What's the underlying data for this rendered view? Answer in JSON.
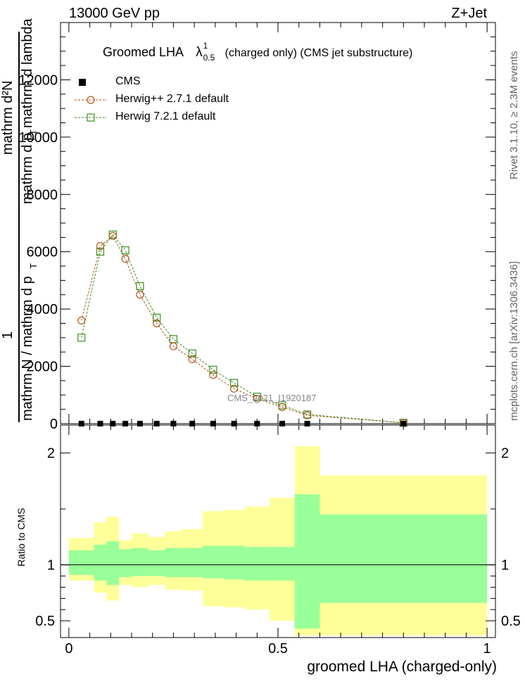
{
  "header": {
    "left": "13000 GeV pp",
    "right": "Z+Jet"
  },
  "side_labels": {
    "rivet": "Rivet 3.1.10, ≥ 2.3M events",
    "mcplots": "mcplots.cern.ch [arXiv:1306.3436]"
  },
  "watermark": "CMS_2021_I1920187",
  "y_title_parts": {
    "numerator": "mathrm d²N",
    "denominator": "mathrm d p",
    "denominator_sub": "T",
    "denominator_tail": " mathrm d lambda",
    "prefix_num": "1",
    "prefix_den": "mathrm N / mathrm d p",
    "prefix_den_sub": "T"
  },
  "colors": {
    "herwig_pp": "#b0561c",
    "herwig7": "#3a8f1c",
    "band_stat": "#99ff99",
    "band_total": "#ffff99"
  },
  "chart_data": [
    {
      "type": "scatter",
      "title": "Groomed LHA  λ¹₀.₅  (charged only) (CMS jet substructure)",
      "title_main": "Groomed LHA",
      "title_lambda": "λ",
      "title_sup": "1",
      "title_sub": "0.5",
      "title_tail": "(charged only) (CMS jet substructure)",
      "xlabel": "groomed LHA (charged-only)",
      "xlim": [
        -0.02,
        1.02
      ],
      "ylim": [
        0,
        14000
      ],
      "y_ticks": [
        0,
        2000,
        4000,
        6000,
        8000,
        10000,
        12000
      ],
      "y_tick_labels": [
        "0",
        "2000",
        "4000",
        "6000",
        "8000",
        "10000",
        "12000"
      ],
      "legend_position": "top-left",
      "series": [
        {
          "name": "CMS",
          "marker": "filled-square",
          "x": [
            0.03,
            0.075,
            0.105,
            0.135,
            0.17,
            0.21,
            0.25,
            0.295,
            0.345,
            0.395,
            0.45,
            0.51,
            0.57,
            0.8
          ],
          "y": [
            0,
            0,
            0,
            0,
            0,
            0,
            0,
            0,
            0,
            0,
            0,
            0,
            0,
            0
          ]
        },
        {
          "name": "Herwig++ 2.7.1 default",
          "marker": "open-circle",
          "x": [
            0.03,
            0.075,
            0.105,
            0.135,
            0.17,
            0.21,
            0.25,
            0.295,
            0.345,
            0.395,
            0.45,
            0.51,
            0.57,
            0.8
          ],
          "y": [
            3600,
            6200,
            6550,
            5750,
            4500,
            3500,
            2700,
            2250,
            1700,
            1220,
            870,
            580,
            290,
            30
          ]
        },
        {
          "name": "Herwig 7.2.1 default",
          "marker": "open-square",
          "x": [
            0.03,
            0.075,
            0.105,
            0.135,
            0.17,
            0.21,
            0.25,
            0.295,
            0.345,
            0.395,
            0.45,
            0.51,
            0.57,
            0.8
          ],
          "y": [
            3000,
            6000,
            6600,
            6050,
            4800,
            3700,
            2950,
            2450,
            1880,
            1420,
            940,
            640,
            320,
            30
          ]
        }
      ]
    },
    {
      "type": "area",
      "ylabel": "Ratio to CMS",
      "xlim": [
        -0.02,
        1.02
      ],
      "ylim": [
        0.35,
        2.25
      ],
      "y_ticks": [
        0.5,
        1,
        2
      ],
      "y_tick_labels": [
        "0.5",
        "1",
        "2"
      ],
      "x_ticks": [
        0,
        0.5,
        1
      ],
      "x_tick_labels": [
        "0",
        "0.5",
        "1"
      ],
      "bins": [
        {
          "x0": 0.0,
          "x1": 0.06,
          "stat": [
            0.91,
            1.13
          ],
          "total": [
            0.86,
            1.24
          ]
        },
        {
          "x0": 0.06,
          "x1": 0.09,
          "stat": [
            0.86,
            1.18
          ],
          "total": [
            0.75,
            1.38
          ]
        },
        {
          "x0": 0.09,
          "x1": 0.12,
          "stat": [
            0.82,
            1.21
          ],
          "total": [
            0.68,
            1.43
          ]
        },
        {
          "x0": 0.12,
          "x1": 0.15,
          "stat": [
            0.89,
            1.14
          ],
          "total": [
            0.82,
            1.22
          ]
        },
        {
          "x0": 0.15,
          "x1": 0.19,
          "stat": [
            0.9,
            1.15
          ],
          "total": [
            0.8,
            1.28
          ]
        },
        {
          "x0": 0.19,
          "x1": 0.23,
          "stat": [
            0.9,
            1.13
          ],
          "total": [
            0.82,
            1.25
          ]
        },
        {
          "x0": 0.23,
          "x1": 0.27,
          "stat": [
            0.89,
            1.15
          ],
          "total": [
            0.78,
            1.3
          ]
        },
        {
          "x0": 0.27,
          "x1": 0.32,
          "stat": [
            0.89,
            1.15
          ],
          "total": [
            0.77,
            1.32
          ]
        },
        {
          "x0": 0.32,
          "x1": 0.37,
          "stat": [
            0.88,
            1.17
          ],
          "total": [
            0.63,
            1.48
          ]
        },
        {
          "x0": 0.37,
          "x1": 0.42,
          "stat": [
            0.87,
            1.17
          ],
          "total": [
            0.62,
            1.49
          ]
        },
        {
          "x0": 0.42,
          "x1": 0.48,
          "stat": [
            0.86,
            1.16
          ],
          "total": [
            0.6,
            1.52
          ]
        },
        {
          "x0": 0.48,
          "x1": 0.54,
          "stat": [
            0.86,
            1.16
          ],
          "total": [
            0.5,
            1.6
          ]
        },
        {
          "x0": 0.54,
          "x1": 0.6,
          "stat": [
            0.43,
            1.63
          ],
          "total": [
            0.37,
            2.06
          ]
        },
        {
          "x0": 0.6,
          "x1": 1.0,
          "stat": [
            0.66,
            1.45
          ],
          "total": [
            0.37,
            1.8
          ]
        }
      ]
    }
  ]
}
